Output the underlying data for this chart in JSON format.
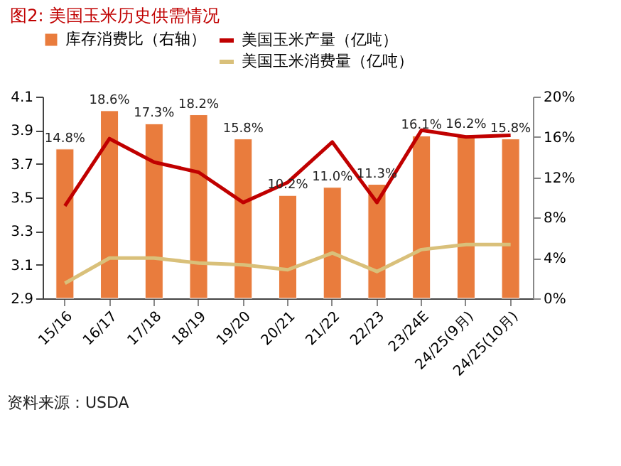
{
  "chart_data": {
    "type": "bar",
    "title": "图2:   美国玉米历史供需情况",
    "categories": [
      "15/16",
      "16/17",
      "17/18",
      "18/19",
      "19/20",
      "20/21",
      "21/22",
      "22/23",
      "23/24E",
      "24/25(9月)",
      "24/25(10月)"
    ],
    "series": [
      {
        "name": "库存消费比（右轴）",
        "axis": "y2",
        "color": "#e97c3d",
        "values": [
          14.8,
          18.6,
          17.3,
          18.2,
          15.8,
          10.2,
          11.0,
          11.3,
          16.1,
          16.2,
          15.8
        ],
        "value_labels": [
          "14.8%",
          "18.6%",
          "17.3%",
          "18.2%",
          "15.8%",
          "10.2%",
          "11.0%",
          "11.3%",
          "16.1%",
          "16.2%",
          "15.8%"
        ]
      },
      {
        "name": "美国玉米产量（亿吨）",
        "type": "line",
        "color": "#c00000",
        "values": [
          3.45,
          3.85,
          3.71,
          3.65,
          3.47,
          3.59,
          3.83,
          3.47,
          3.9,
          3.86,
          3.87
        ]
      },
      {
        "name": "美国玉米消费量（亿吨）",
        "type": "line",
        "color": "#d9c07a",
        "values": [
          2.99,
          3.14,
          3.14,
          3.11,
          3.1,
          3.07,
          3.17,
          3.06,
          3.19,
          3.22,
          3.22
        ]
      }
    ],
    "ylim": [
      2.9,
      4.1
    ],
    "yticks": [
      2.9,
      3.1,
      3.3,
      3.5,
      3.7,
      3.9,
      4.1
    ],
    "y2lim": [
      0,
      20
    ],
    "y2ticks": [
      {
        "value": 0,
        "label": "0%"
      },
      {
        "value": 4,
        "label": "4%"
      },
      {
        "value": 8,
        "label": "8%"
      },
      {
        "value": 12,
        "label": "12%"
      },
      {
        "value": 16,
        "label": "16%"
      },
      {
        "value": 20,
        "label": "20%"
      }
    ],
    "grid": false,
    "legend": "top",
    "annotations": [
      "资料来源：USDA"
    ]
  }
}
